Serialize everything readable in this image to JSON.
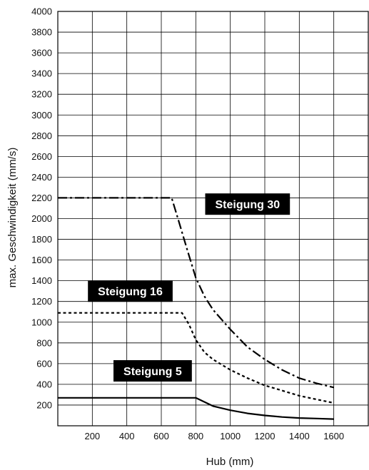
{
  "chart_data": {
    "type": "line",
    "xlabel": "Hub (mm)",
    "ylabel": "max. Geschwindigkeit (mm/s)",
    "xlim": [
      0,
      1800
    ],
    "ylim": [
      0,
      4000
    ],
    "x_ticks": [
      200,
      400,
      600,
      800,
      1000,
      1200,
      1400,
      1600
    ],
    "y_ticks": [
      200,
      400,
      600,
      800,
      1000,
      1200,
      1400,
      1600,
      1800,
      2000,
      2200,
      2400,
      2600,
      2800,
      3000,
      3200,
      3400,
      3600,
      3800,
      4000
    ],
    "grid": true,
    "series": [
      {
        "name": "Steigung 30",
        "style": "dashdot",
        "color": "#000000",
        "label_at": [
          1100,
          2140
        ],
        "points": [
          [
            0,
            2200
          ],
          [
            660,
            2200
          ],
          [
            700,
            1980
          ],
          [
            750,
            1700
          ],
          [
            800,
            1430
          ],
          [
            850,
            1250
          ],
          [
            900,
            1120
          ],
          [
            1000,
            930
          ],
          [
            1100,
            760
          ],
          [
            1200,
            640
          ],
          [
            1300,
            540
          ],
          [
            1400,
            460
          ],
          [
            1500,
            410
          ],
          [
            1600,
            370
          ]
        ]
      },
      {
        "name": "Steigung 16",
        "style": "dotted",
        "color": "#000000",
        "label_at": [
          420,
          1300
        ],
        "points": [
          [
            0,
            1090
          ],
          [
            720,
            1090
          ],
          [
            760,
            980
          ],
          [
            800,
            830
          ],
          [
            850,
            710
          ],
          [
            900,
            640
          ],
          [
            1000,
            540
          ],
          [
            1100,
            460
          ],
          [
            1200,
            390
          ],
          [
            1300,
            340
          ],
          [
            1400,
            290
          ],
          [
            1500,
            255
          ],
          [
            1600,
            220
          ]
        ]
      },
      {
        "name": "Steigung 5",
        "style": "solid",
        "color": "#000000",
        "label_at": [
          550,
          530
        ],
        "points": [
          [
            0,
            270
          ],
          [
            800,
            270
          ],
          [
            900,
            190
          ],
          [
            1000,
            150
          ],
          [
            1100,
            120
          ],
          [
            1200,
            100
          ],
          [
            1300,
            85
          ],
          [
            1400,
            75
          ],
          [
            1500,
            70
          ],
          [
            1600,
            65
          ]
        ]
      }
    ]
  }
}
